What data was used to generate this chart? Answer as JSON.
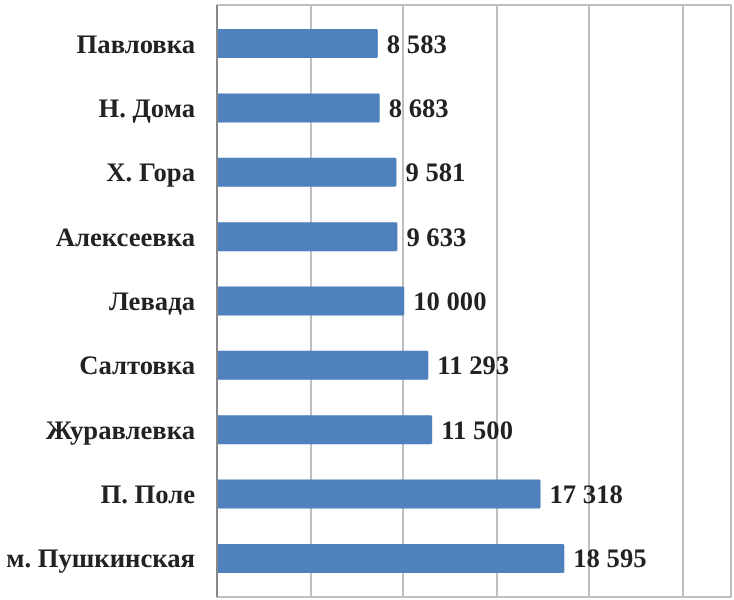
{
  "chart_data": {
    "type": "bar",
    "orientation": "horizontal",
    "categories": [
      "Павловка",
      "Н. Дома",
      "Х. Гора",
      "Алексеевка",
      "Левада",
      "Салтовка",
      "Журавлевка",
      "П. Поле",
      "м. Пушкинская"
    ],
    "values": [
      8583,
      8683,
      9581,
      9633,
      10000,
      11293,
      11500,
      17318,
      18595
    ],
    "value_labels": [
      "8 583",
      "8 683",
      "9 581",
      "9 633",
      "10 000",
      "11 293",
      "11 500",
      "17 318",
      "18 595"
    ],
    "color": "#4f81bd",
    "xlim": [
      0,
      27600
    ],
    "xticks": [
      0,
      5000,
      10000,
      15000,
      20000,
      25000
    ],
    "tick_labels": "y",
    "grid": "x"
  }
}
